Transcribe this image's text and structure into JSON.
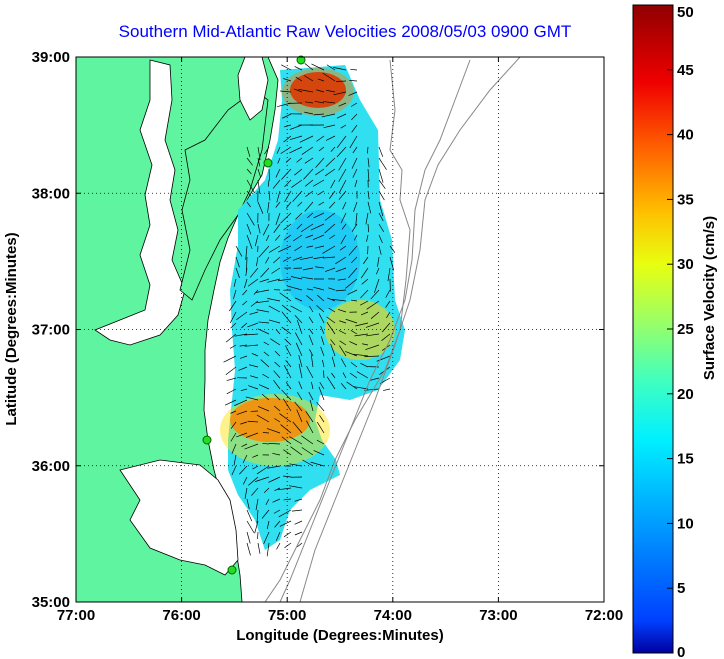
{
  "title": "Southern Mid-Atlantic Raw Velocities 2008/05/03 0900 GMT",
  "chart_data": {
    "type": "heatmap",
    "xlabel": "Longitude (Degrees:Minutes)",
    "ylabel": "Latitude (Degrees:Minutes)",
    "xlim": [
      -77,
      -72
    ],
    "ylim": [
      35,
      39
    ],
    "x_ticks": [
      "77:00",
      "76:00",
      "75:00",
      "74:00",
      "73:00",
      "72:00"
    ],
    "y_ticks": [
      "35:00",
      "36:00",
      "37:00",
      "38:00",
      "39:00"
    ],
    "grid": "dotted",
    "colorbar": {
      "label": "Surface Velocity (cm/s)",
      "range": [
        0,
        50
      ],
      "ticks": [
        "0",
        "5",
        "10",
        "15",
        "20",
        "25",
        "30",
        "35",
        "40",
        "45",
        "50"
      ],
      "colormap": "jet"
    },
    "land_color": "#5ff5a0",
    "vector_color": "#000000",
    "station_color": "#22dd22"
  }
}
